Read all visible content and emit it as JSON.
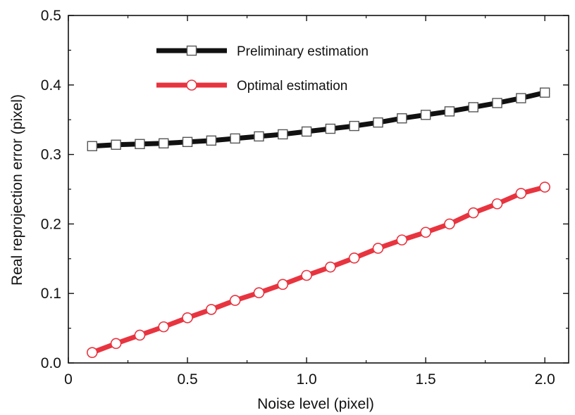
{
  "chart_data": {
    "type": "line",
    "title": "",
    "xlabel": "Noise level (pixel)",
    "ylabel": "Real reprojection error (pixel)",
    "xlim": [
      0,
      2.1
    ],
    "ylim": [
      0,
      0.5
    ],
    "x_ticks": [
      0,
      0.5,
      1.0,
      1.5,
      2.0
    ],
    "x_tick_labels": [
      "0",
      "0.5",
      "1.0",
      "1.5",
      "2.0"
    ],
    "y_ticks": [
      0,
      0.1,
      0.2,
      0.3,
      0.4,
      0.5
    ],
    "y_tick_labels": [
      "0.0",
      "0.1",
      "0.2",
      "0.3",
      "0.4",
      "0.5"
    ],
    "grid": false,
    "legend_position": "top-center",
    "x": [
      0.1,
      0.2,
      0.3,
      0.4,
      0.5,
      0.6,
      0.7,
      0.8,
      0.9,
      1.0,
      1.1,
      1.2,
      1.3,
      1.4,
      1.5,
      1.6,
      1.7,
      1.8,
      1.9,
      2.0
    ],
    "series": [
      {
        "name": "Preliminary estimation",
        "color": "#111111",
        "marker": "square",
        "values": [
          0.312,
          0.314,
          0.315,
          0.316,
          0.318,
          0.32,
          0.323,
          0.326,
          0.329,
          0.333,
          0.337,
          0.341,
          0.346,
          0.352,
          0.357,
          0.362,
          0.368,
          0.374,
          0.381,
          0.389
        ]
      },
      {
        "name": "Optimal estimation",
        "color": "#e8343f",
        "marker": "circle",
        "values": [
          0.015,
          0.028,
          0.04,
          0.052,
          0.065,
          0.077,
          0.09,
          0.101,
          0.113,
          0.126,
          0.138,
          0.151,
          0.165,
          0.177,
          0.188,
          0.2,
          0.216,
          0.229,
          0.244,
          0.253
        ]
      }
    ]
  }
}
